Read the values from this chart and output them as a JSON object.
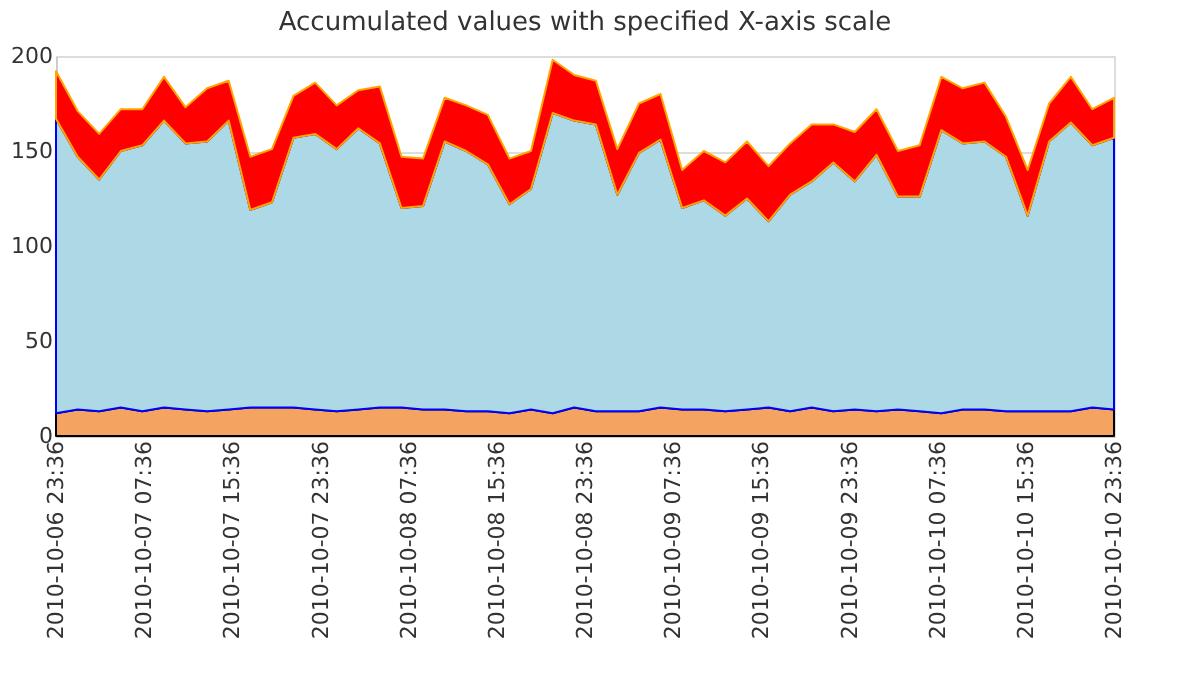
{
  "chart_data": {
    "type": "area",
    "title": "Accumulated values with specified X-axis scale",
    "stacked": true,
    "x": [
      "2010-10-06T23:36",
      "2010-10-07T01:34",
      "2010-10-07T03:31",
      "2010-10-07T05:29",
      "2010-10-07T07:26",
      "2010-10-07T09:24",
      "2010-10-07T11:21",
      "2010-10-07T13:19",
      "2010-10-07T15:16",
      "2010-10-07T17:14",
      "2010-10-07T19:12",
      "2010-10-07T21:09",
      "2010-10-07T23:07",
      "2010-10-08T01:04",
      "2010-10-08T03:02",
      "2010-10-08T04:59",
      "2010-10-08T06:57",
      "2010-10-08T08:54",
      "2010-10-08T10:52",
      "2010-10-08T12:49",
      "2010-10-08T14:47",
      "2010-10-08T16:45",
      "2010-10-08T18:42",
      "2010-10-08T20:40",
      "2010-10-08T22:37",
      "2010-10-09T00:35",
      "2010-10-09T02:32",
      "2010-10-09T04:30",
      "2010-10-09T06:27",
      "2010-10-09T08:25",
      "2010-10-09T10:23",
      "2010-10-09T12:20",
      "2010-10-09T14:18",
      "2010-10-09T16:15",
      "2010-10-09T18:13",
      "2010-10-09T20:10",
      "2010-10-09T22:08",
      "2010-10-10T00:05",
      "2010-10-10T02:03",
      "2010-10-10T04:00",
      "2010-10-10T05:58",
      "2010-10-10T07:56",
      "2010-10-10T09:53",
      "2010-10-10T11:51",
      "2010-10-10T13:48",
      "2010-10-10T15:46",
      "2010-10-10T17:43",
      "2010-10-10T19:41",
      "2010-10-10T21:38",
      "2010-10-10T23:36"
    ],
    "series": [
      {
        "color": "#f4a460",
        "values": [
          12,
          14,
          13,
          15,
          13,
          15,
          14,
          13,
          14,
          15,
          15,
          15,
          14,
          13,
          14,
          15,
          15,
          14,
          14,
          13,
          13,
          12,
          14,
          12,
          15,
          13,
          13,
          13,
          15,
          14,
          14,
          13,
          14,
          15,
          13,
          15,
          13,
          14,
          13,
          14,
          13,
          12,
          14,
          14,
          13,
          13,
          13,
          13,
          15,
          14
        ]
      },
      {
        "color": "#add8e6",
        "values": [
          155,
          133,
          122,
          135,
          140,
          151,
          140,
          142,
          152,
          104,
          108,
          142,
          145,
          138,
          148,
          139,
          105,
          107,
          141,
          137,
          130,
          110,
          116,
          158,
          151,
          151,
          114,
          136,
          141,
          106,
          110,
          103,
          111,
          98,
          114,
          119,
          131,
          120,
          135,
          112,
          113,
          149,
          140,
          141,
          134,
          103,
          142,
          152,
          138,
          143
        ]
      },
      {
        "color": "#ff0000",
        "values": [
          25,
          24,
          24,
          22,
          19,
          23,
          19,
          28,
          21,
          28,
          28,
          22,
          27,
          23,
          20,
          30,
          27,
          25,
          23,
          24,
          26,
          24,
          20,
          28,
          24,
          23,
          24,
          26,
          24,
          20,
          26,
          28,
          30,
          29,
          27,
          30,
          20,
          26,
          24,
          24,
          27,
          28,
          29,
          31,
          21,
          24,
          20,
          24,
          19,
          21
        ]
      }
    ],
    "xlim": [
      "2010-10-06T23:36",
      "2010-10-10T23:36"
    ],
    "xticks": [
      {
        "value": "2010-10-06T23:36",
        "label": "2010-10-06 23:36"
      },
      {
        "value": "2010-10-07T07:36",
        "label": "2010-10-07 07:36"
      },
      {
        "value": "2010-10-07T15:36",
        "label": "2010-10-07 15:36"
      },
      {
        "value": "2010-10-07T23:36",
        "label": "2010-10-07 23:36"
      },
      {
        "value": "2010-10-08T07:36",
        "label": "2010-10-08 07:36"
      },
      {
        "value": "2010-10-08T15:36",
        "label": "2010-10-08 15:36"
      },
      {
        "value": "2010-10-08T23:36",
        "label": "2010-10-08 23:36"
      },
      {
        "value": "2010-10-09T07:36",
        "label": "2010-10-09 07:36"
      },
      {
        "value": "2010-10-09T15:36",
        "label": "2010-10-09 15:36"
      },
      {
        "value": "2010-10-09T23:36",
        "label": "2010-10-09 23:36"
      },
      {
        "value": "2010-10-10T07:36",
        "label": "2010-10-10 07:36"
      },
      {
        "value": "2010-10-10T15:36",
        "label": "2010-10-10 15:36"
      },
      {
        "value": "2010-10-10T23:36",
        "label": "2010-10-10 23:36"
      }
    ],
    "ylim": [
      0,
      200
    ],
    "yticks": [
      0,
      50,
      100,
      150,
      200
    ],
    "grid": "y",
    "legend": false
  }
}
